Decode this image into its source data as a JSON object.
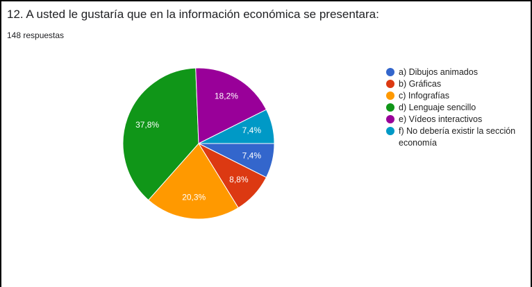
{
  "chart_data": {
    "type": "pie",
    "title": "12. A usted le gustaría que en la información económica se presentara:",
    "subtitle": "148 respuestas",
    "categories": [
      "a) Dibujos animados",
      "b) Gráficas",
      "c) Infografías",
      "d) Lenguaje sencillo",
      "e) Vídeos interactivos",
      "f) No debería existir la sección economía"
    ],
    "values": [
      7.4,
      8.8,
      20.3,
      37.8,
      18.2,
      7.4
    ],
    "value_labels": [
      "7,4%",
      "8,8%",
      "20,3%",
      "37,8%",
      "18,2%",
      "7,4%"
    ],
    "colors": [
      "#3366cc",
      "#dc3912",
      "#ff9900",
      "#109618",
      "#990099",
      "#0099c6"
    ],
    "legend": "right"
  }
}
